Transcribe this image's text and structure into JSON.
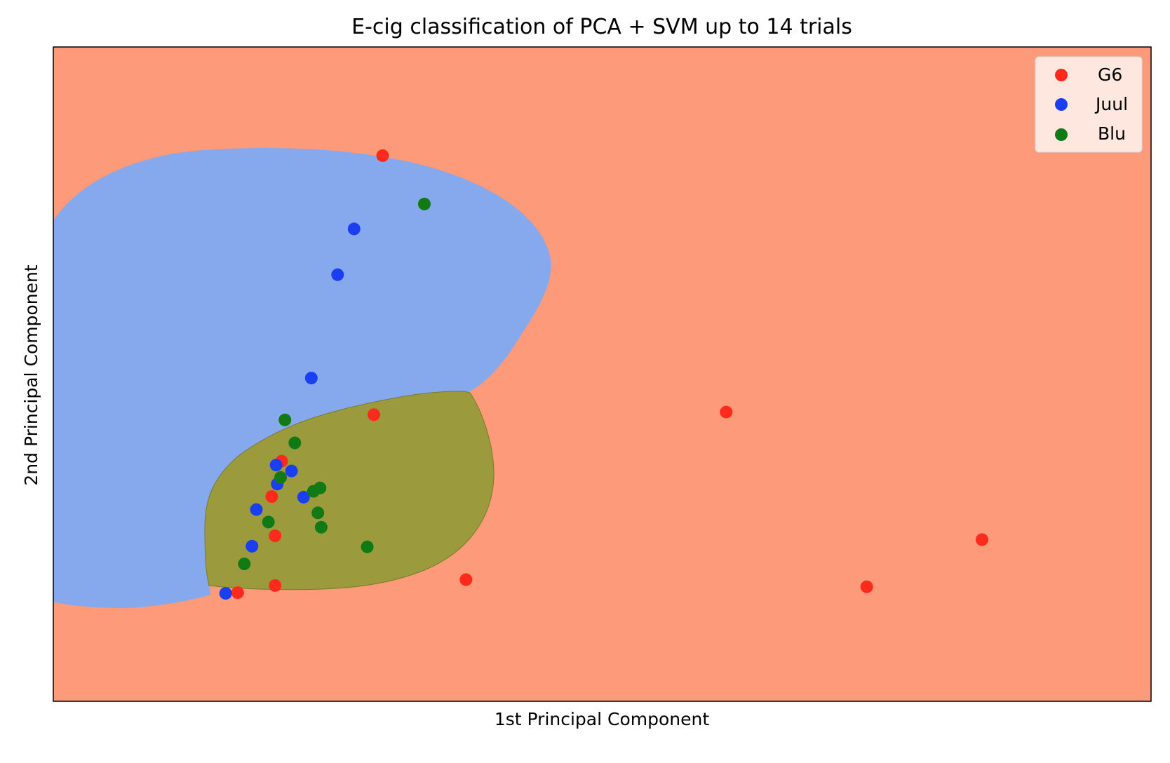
{
  "chart_data": {
    "type": "scatter",
    "title": "E-cig classification of PCA + SVM up to 14 trials",
    "xlabel": "1st Principal Component",
    "ylabel": "2nd Principal Component",
    "xlim": [
      0,
      100
    ],
    "ylim": [
      0,
      100
    ],
    "ticks_shown": false,
    "grid": false,
    "legend_position": "top-right",
    "regions": [
      {
        "class": "G6",
        "color": "#fc9a7a"
      },
      {
        "class": "Juul",
        "color": "#86a9ed"
      },
      {
        "class": "Blu",
        "color": "#9b9a3c"
      }
    ],
    "series": [
      {
        "name": "G6",
        "color": "#ff2a1c",
        "points": [
          [
            30.0,
            83.4
          ],
          [
            29.2,
            43.8
          ],
          [
            61.3,
            44.2
          ],
          [
            20.8,
            36.7
          ],
          [
            19.9,
            31.3
          ],
          [
            20.2,
            25.3
          ],
          [
            16.8,
            16.6
          ],
          [
            20.2,
            17.7
          ],
          [
            37.6,
            18.6
          ],
          [
            74.1,
            17.5
          ],
          [
            84.6,
            24.7
          ]
        ]
      },
      {
        "name": "Juul",
        "color": "#1a3ff0",
        "points": [
          [
            27.4,
            72.2
          ],
          [
            25.9,
            65.2
          ],
          [
            23.5,
            49.4
          ],
          [
            20.3,
            36.1
          ],
          [
            21.7,
            35.2
          ],
          [
            20.4,
            33.2
          ],
          [
            22.8,
            31.2
          ],
          [
            18.5,
            29.3
          ],
          [
            18.1,
            23.7
          ],
          [
            15.7,
            16.5
          ]
        ]
      },
      {
        "name": "Blu",
        "color": "#127a14",
        "points": [
          [
            33.8,
            76.0
          ],
          [
            21.1,
            43.0
          ],
          [
            22.0,
            39.5
          ],
          [
            20.7,
            34.2
          ],
          [
            24.3,
            32.6
          ],
          [
            23.7,
            32.1
          ],
          [
            24.1,
            28.8
          ],
          [
            19.6,
            27.4
          ],
          [
            24.4,
            26.6
          ],
          [
            28.6,
            23.6
          ],
          [
            17.4,
            21.0
          ]
        ]
      }
    ]
  }
}
